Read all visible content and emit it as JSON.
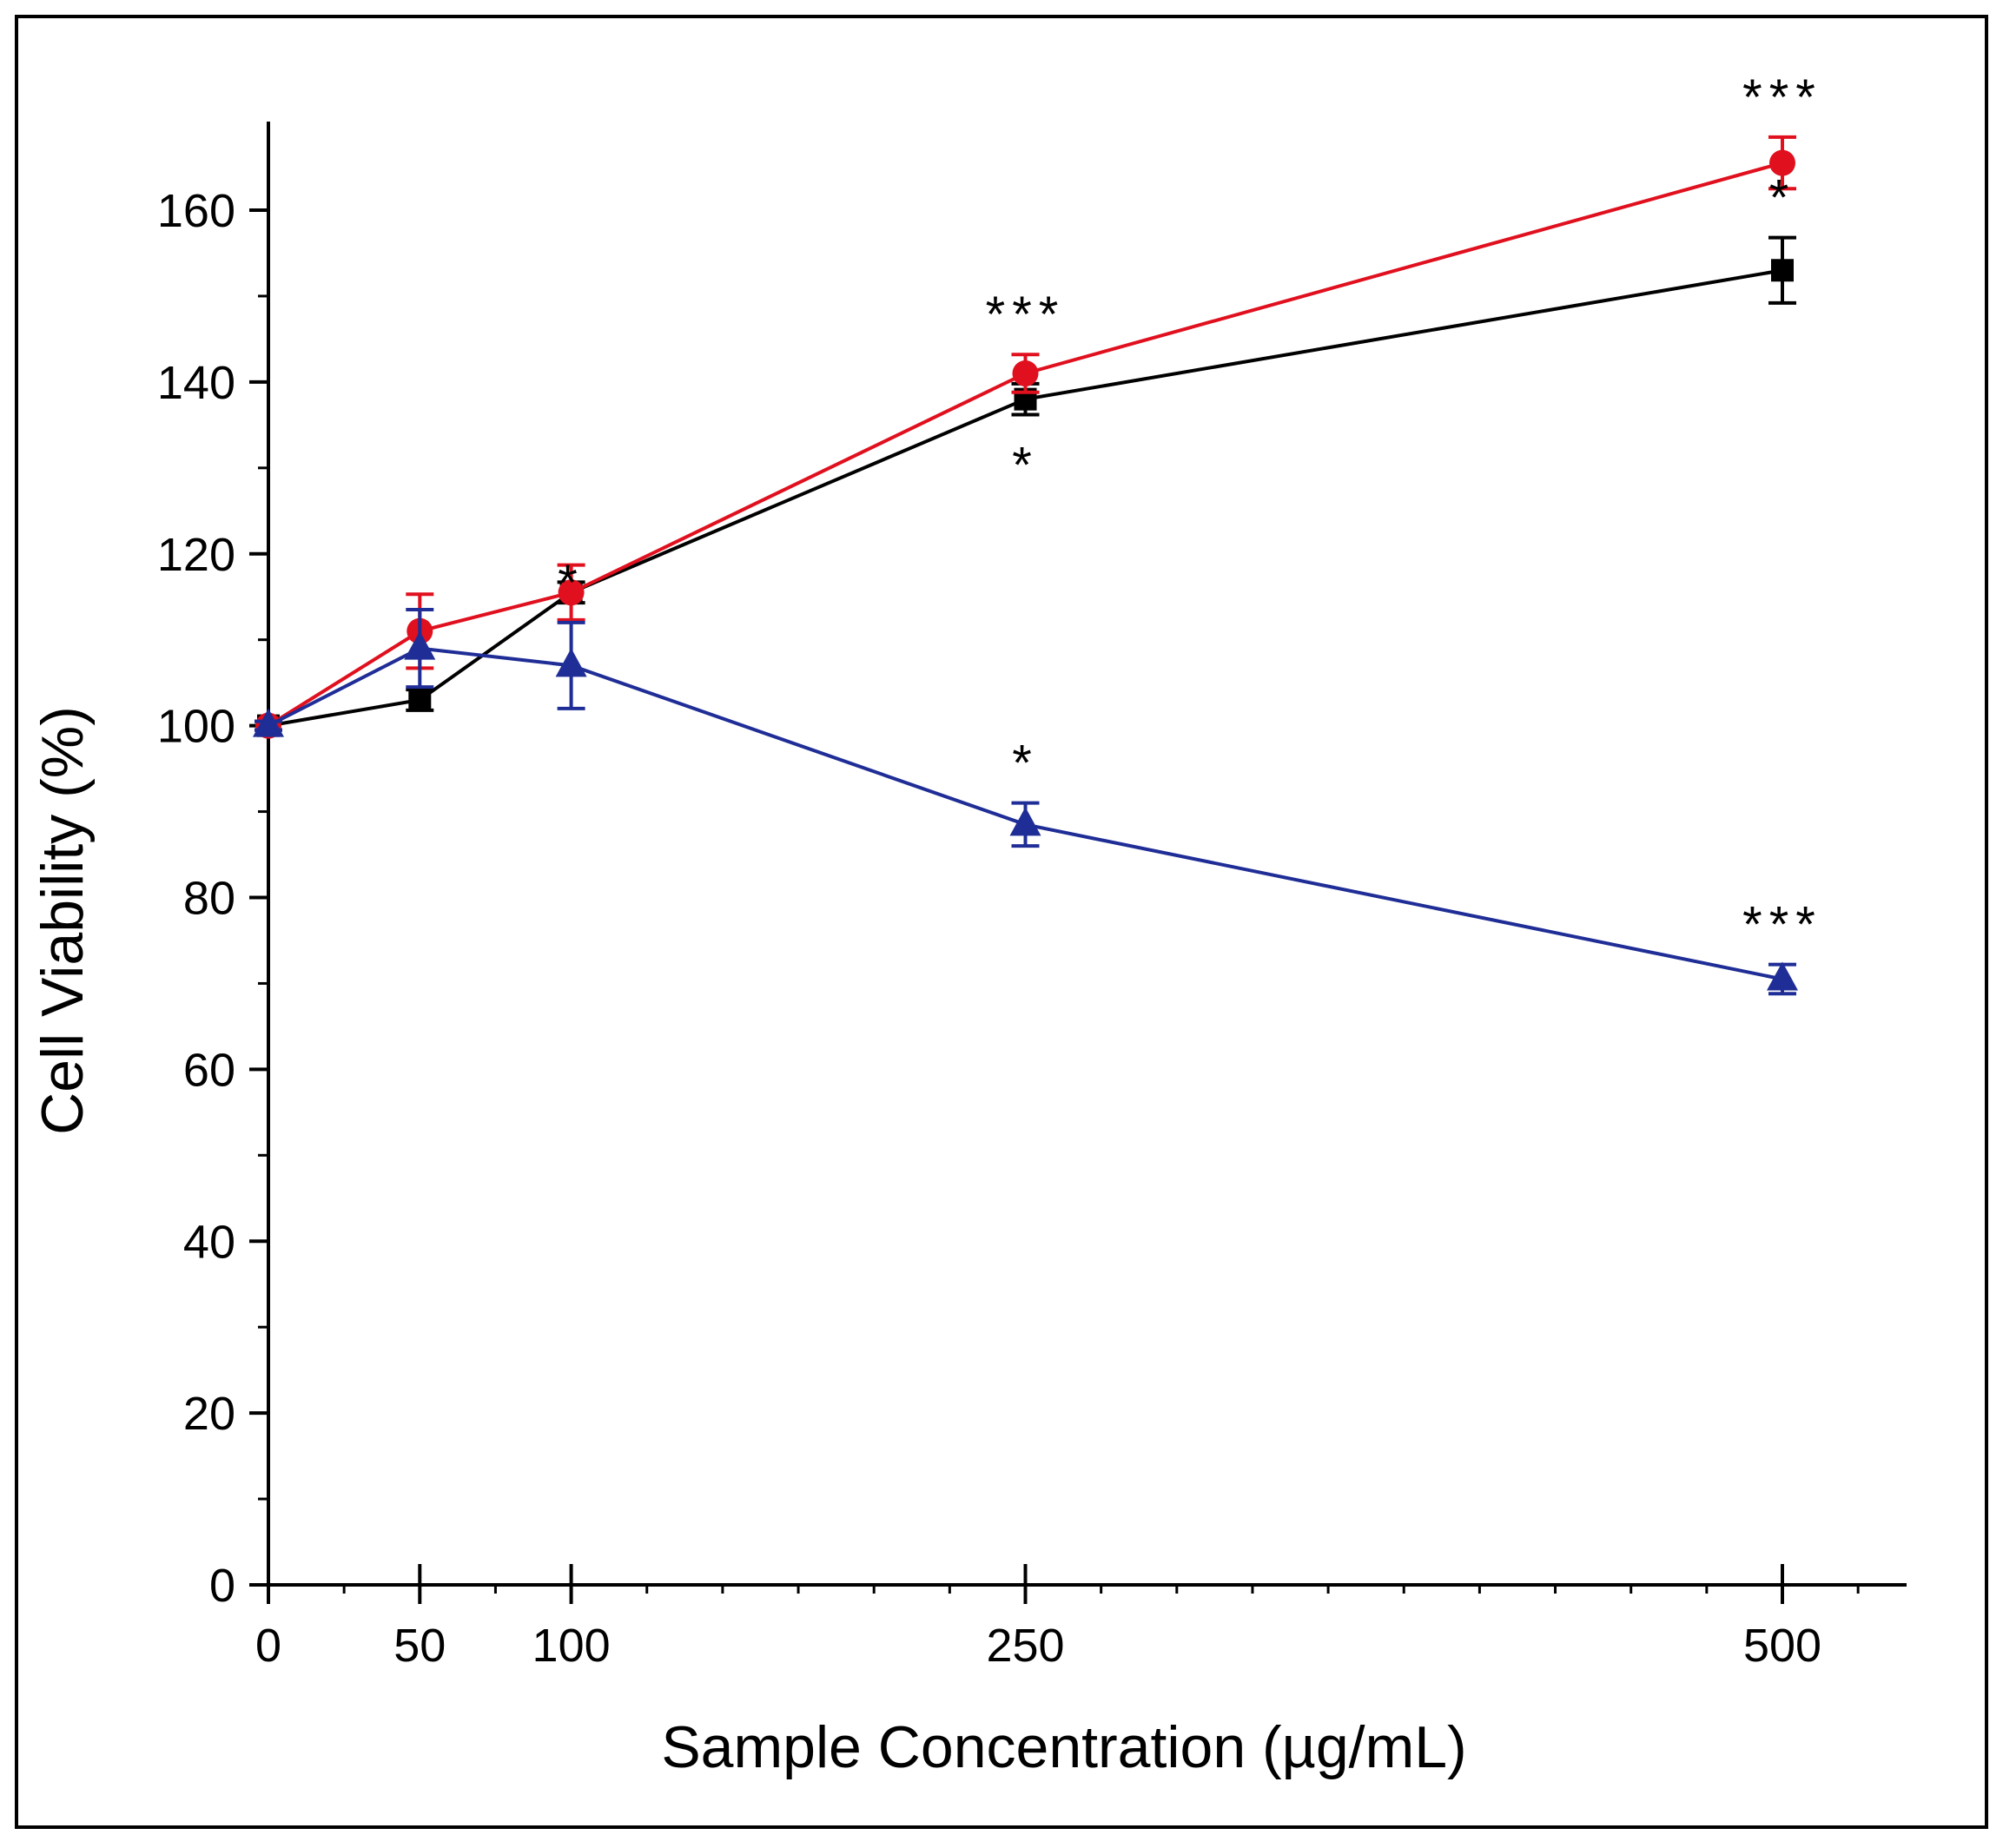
{
  "chart_data": {
    "type": "line",
    "title": "",
    "xlabel": "Sample Concentration (µg/mL)",
    "ylabel": "Cell Viability (%)",
    "xlim": [
      0,
      540
    ],
    "ylim": [
      0,
      170
    ],
    "x_ticks": [
      0,
      50,
      100,
      250,
      500
    ],
    "x_tick_labels": [
      "0",
      "50",
      "100",
      "250",
      "500"
    ],
    "y_ticks": [
      0,
      20,
      40,
      60,
      80,
      100,
      120,
      140,
      160
    ],
    "y_tick_labels": [
      "0",
      "20",
      "40",
      "60",
      "80",
      "100",
      "120",
      "140",
      "160"
    ],
    "grid": false,
    "legend": "none",
    "x": [
      0,
      50,
      100,
      250,
      500
    ],
    "series": [
      {
        "color": "#000000",
        "marker": "square",
        "values": [
          100,
          103,
          115.5,
          138,
          153
        ],
        "errors": [
          0.5,
          1.2,
          1.2,
          1.8,
          3.8
        ],
        "annotations": [
          {
            "x": 250,
            "text": "*",
            "position": "below"
          },
          {
            "x": 500,
            "text": "*",
            "position": "above"
          }
        ]
      },
      {
        "color": "#e0101e",
        "marker": "circle",
        "values": [
          100,
          111,
          115.5,
          141,
          165.5
        ],
        "errors": [
          0.5,
          4.3,
          3.2,
          2.2,
          3.0
        ],
        "annotations": [
          {
            "x": 250,
            "text": "***",
            "position": "above"
          },
          {
            "x": 500,
            "text": "***",
            "position": "above"
          }
        ]
      },
      {
        "color": "#1f2d96",
        "marker": "triangle",
        "values": [
          100,
          109,
          107,
          88.5,
          70.5
        ],
        "errors": [
          0.5,
          4.5,
          5.0,
          2.5,
          1.7
        ],
        "annotations": [
          {
            "x": 100,
            "text": "*",
            "position": "above"
          },
          {
            "x": 250,
            "text": "*",
            "position": "above"
          },
          {
            "x": 500,
            "text": "***",
            "position": "above"
          }
        ]
      }
    ]
  }
}
